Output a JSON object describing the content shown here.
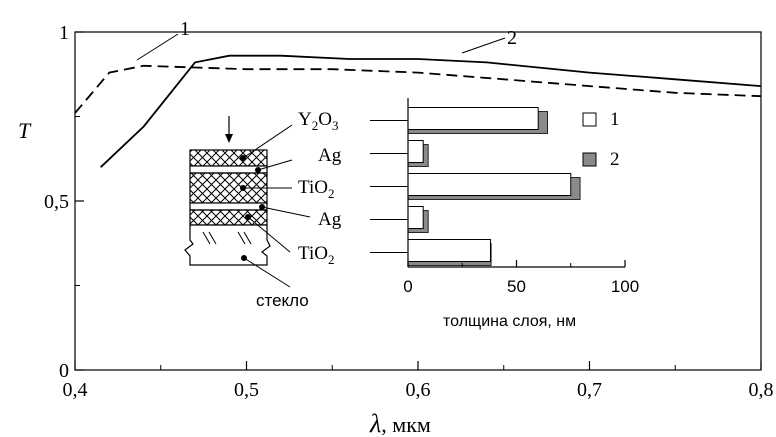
{
  "chart_data": [
    {
      "type": "line",
      "xlabel_symbol": "λ",
      "xlabel_unit": ", мкм",
      "ylabel": "T",
      "xlim": [
        0.4,
        0.8
      ],
      "ylim": [
        0,
        1
      ],
      "x_ticks": [
        "0,4",
        "0,5",
        "0,6",
        "0,7",
        "0,8"
      ],
      "y_ticks": [
        "0",
        "0,5",
        "1"
      ],
      "series": [
        {
          "name": "1",
          "style": "dashed",
          "x": [
            0.4,
            0.42,
            0.44,
            0.5,
            0.55,
            0.6,
            0.65,
            0.7,
            0.75,
            0.8
          ],
          "y": [
            0.76,
            0.88,
            0.9,
            0.89,
            0.89,
            0.88,
            0.86,
            0.84,
            0.82,
            0.81
          ]
        },
        {
          "name": "2",
          "style": "solid",
          "x": [
            0.415,
            0.44,
            0.47,
            0.49,
            0.52,
            0.56,
            0.6,
            0.64,
            0.7,
            0.75,
            0.8
          ],
          "y": [
            0.6,
            0.72,
            0.91,
            0.93,
            0.93,
            0.92,
            0.92,
            0.91,
            0.88,
            0.86,
            0.84
          ]
        }
      ],
      "curve_labels": [
        "1",
        "2"
      ]
    },
    {
      "type": "bar",
      "orientation": "horizontal",
      "xlabel": "толщина слоя, нм",
      "xlim": [
        0,
        100
      ],
      "x_ticks": [
        "0",
        "50",
        "100"
      ],
      "categories": [
        "Y2O3",
        "Ag",
        "TiO2",
        "Ag",
        "TiO2"
      ],
      "series": [
        {
          "name": "1",
          "color": "#ffffff",
          "values": [
            60,
            7,
            75,
            7,
            38
          ]
        },
        {
          "name": "2",
          "color": "#8a8a8a",
          "values": [
            62,
            7,
            77,
            7,
            36
          ]
        }
      ],
      "legend": [
        "1",
        "2"
      ]
    }
  ],
  "inset_labels": {
    "layer1": {
      "base": "Y",
      "sub1": "2",
      "mid": "O",
      "sub2": "3"
    },
    "layer2": {
      "base": "Ag"
    },
    "layer3": {
      "base": "TiO",
      "sub1": "2"
    },
    "layer4": {
      "base": "Ag"
    },
    "layer5": {
      "base": "TiO",
      "sub1": "2"
    },
    "substrate": "стекло"
  }
}
